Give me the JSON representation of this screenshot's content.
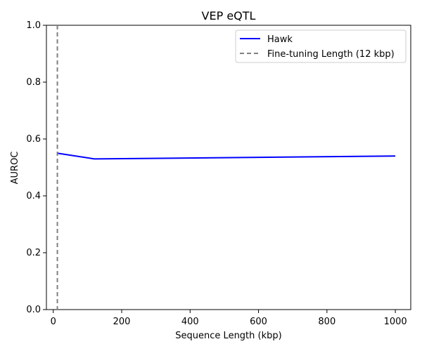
{
  "chart_data": {
    "type": "line",
    "title": "VEP eQTL",
    "xlabel": "Sequence Length (kbp)",
    "ylabel": "AUROC",
    "xlim": [
      -20,
      1045
    ],
    "ylim": [
      0.0,
      1.0
    ],
    "xticks": [
      0,
      200,
      400,
      600,
      800,
      1000
    ],
    "yticks": [
      0.0,
      0.2,
      0.4,
      0.6,
      0.8,
      1.0
    ],
    "xtick_labels": [
      "0",
      "200",
      "400",
      "600",
      "800",
      "1000"
    ],
    "ytick_labels": [
      "0.0",
      "0.2",
      "0.4",
      "0.6",
      "0.8",
      "1.0"
    ],
    "grid": false,
    "legend_position": "upper right",
    "series": [
      {
        "name": "Hawk",
        "x": [
          12,
          120,
          1000
        ],
        "y": [
          0.55,
          0.53,
          0.54
        ],
        "color": "#0000ff",
        "linestyle": "solid"
      }
    ],
    "reference_lines": [
      {
        "name": "Fine-tuning Length (12 kbp)",
        "orientation": "vertical",
        "x": 12,
        "color": "#808080",
        "linestyle": "dashed"
      }
    ]
  }
}
